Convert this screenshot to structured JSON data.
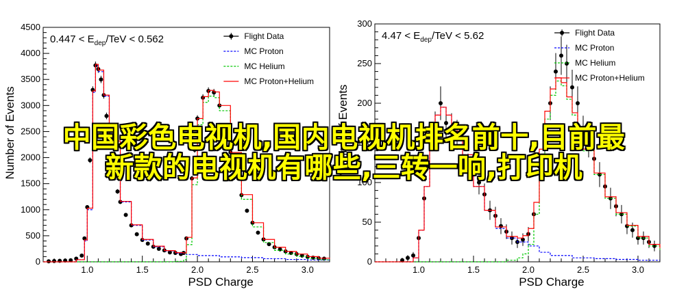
{
  "overlay": {
    "line1": "中国彩色电视机,国内电视机排名前十,目前最",
    "line2": "新款的电视机有哪些,三转一响,打印机"
  },
  "colors": {
    "flight": "#000000",
    "proton": "#0000ff",
    "helium": "#00c800",
    "sum": "#ff0000",
    "overlay_text": "#ffff00"
  },
  "chart_data": [
    {
      "type": "line",
      "title": "0.447 < E_dep/TeV < 0.562",
      "title_parts": {
        "prefix": "0.447 < E",
        "sub": "dep",
        "suffix": "/TeV < 0.562"
      },
      "xlabel": "PSD Charge",
      "ylabel": "Number of Events",
      "xlim": [
        0.6,
        3.2
      ],
      "ylim": [
        0,
        4500
      ],
      "xticks": [
        "1.0",
        "1.5",
        "2.0",
        "2.5",
        "3.0"
      ],
      "yticks": [
        "0",
        "500",
        "1000",
        "1500",
        "2000",
        "2500",
        "3000",
        "3500",
        "4000",
        "4500"
      ],
      "legend": [
        "Flight Data",
        "MC Proton",
        "MC Helium",
        "MC Proton+Helium"
      ],
      "legend_position": "top-right",
      "series": [
        {
          "name": "Flight Data",
          "points": [
            [
              0.65,
              10
            ],
            [
              0.7,
              15
            ],
            [
              0.75,
              20
            ],
            [
              0.8,
              25
            ],
            [
              0.85,
              30
            ],
            [
              0.9,
              60
            ],
            [
              0.95,
              120
            ],
            [
              0.975,
              450
            ],
            [
              1.0,
              1050
            ],
            [
              1.025,
              1950
            ],
            [
              1.05,
              3300
            ],
            [
              1.075,
              3770
            ],
            [
              1.1,
              3700
            ],
            [
              1.125,
              3500
            ],
            [
              1.15,
              3200
            ],
            [
              1.175,
              2800
            ],
            [
              1.2,
              2350
            ],
            [
              1.225,
              1950
            ],
            [
              1.25,
              1650
            ],
            [
              1.275,
              1350
            ],
            [
              1.3,
              1150
            ],
            [
              1.35,
              900
            ],
            [
              1.4,
              700
            ],
            [
              1.45,
              530
            ],
            [
              1.5,
              420
            ],
            [
              1.55,
              350
            ],
            [
              1.6,
              290
            ],
            [
              1.65,
              250
            ],
            [
              1.7,
              220
            ],
            [
              1.75,
              180
            ],
            [
              1.8,
              170
            ],
            [
              1.85,
              150
            ],
            [
              1.875,
              170
            ],
            [
              1.9,
              450
            ],
            [
              1.95,
              1600
            ],
            [
              1.975,
              2150
            ],
            [
              2.0,
              2750
            ],
            [
              2.05,
              3150
            ],
            [
              2.1,
              3280
            ],
            [
              2.15,
              3250
            ],
            [
              2.2,
              3000
            ],
            [
              2.25,
              2600
            ],
            [
              2.3,
              2100
            ],
            [
              2.35,
              1650
            ],
            [
              2.4,
              1280
            ],
            [
              2.45,
              980
            ],
            [
              2.5,
              750
            ],
            [
              2.55,
              560
            ],
            [
              2.6,
              430
            ],
            [
              2.65,
              340
            ],
            [
              2.7,
              280
            ],
            [
              2.75,
              240
            ],
            [
              2.8,
              200
            ],
            [
              2.85,
              170
            ],
            [
              2.9,
              150
            ],
            [
              2.95,
              120
            ],
            [
              3.0,
              95
            ],
            [
              3.05,
              80
            ],
            [
              3.1,
              70
            ],
            [
              3.15,
              60
            ]
          ]
        },
        {
          "name": "MC Proton",
          "points": [
            [
              0.6,
              0
            ],
            [
              0.9,
              40
            ],
            [
              0.975,
              400
            ],
            [
              1.0,
              1000
            ],
            [
              1.05,
              3250
            ],
            [
              1.075,
              3760
            ],
            [
              1.1,
              3650
            ],
            [
              1.15,
              3180
            ],
            [
              1.2,
              2300
            ],
            [
              1.3,
              1150
            ],
            [
              1.4,
              700
            ],
            [
              1.5,
              420
            ],
            [
              1.6,
              290
            ],
            [
              1.7,
              210
            ],
            [
              1.8,
              165
            ],
            [
              1.9,
              140
            ],
            [
              2.0,
              120
            ],
            [
              2.2,
              95
            ],
            [
              2.4,
              80
            ],
            [
              2.6,
              60
            ],
            [
              2.8,
              45
            ],
            [
              3.0,
              35
            ],
            [
              3.2,
              30
            ]
          ]
        },
        {
          "name": "MC Helium",
          "points": [
            [
              0.6,
              0
            ],
            [
              1.7,
              2
            ],
            [
              1.8,
              8
            ],
            [
              1.875,
              40
            ],
            [
              1.9,
              330
            ],
            [
              1.95,
              1480
            ],
            [
              2.0,
              2630
            ],
            [
              2.05,
              3060
            ],
            [
              2.1,
              3180
            ],
            [
              2.15,
              3150
            ],
            [
              2.2,
              2900
            ],
            [
              2.3,
              2000
            ],
            [
              2.4,
              1200
            ],
            [
              2.5,
              670
            ],
            [
              2.6,
              370
            ],
            [
              2.7,
              220
            ],
            [
              2.8,
              150
            ],
            [
              2.9,
              105
            ],
            [
              3.0,
              65
            ],
            [
              3.1,
              40
            ],
            [
              3.2,
              30
            ]
          ]
        },
        {
          "name": "MC Proton+Helium",
          "points": [
            [
              0.6,
              0
            ],
            [
              0.9,
              40
            ],
            [
              0.975,
              420
            ],
            [
              1.0,
              1030
            ],
            [
              1.05,
              3280
            ],
            [
              1.075,
              3790
            ],
            [
              1.1,
              3680
            ],
            [
              1.15,
              3200
            ],
            [
              1.2,
              2320
            ],
            [
              1.3,
              1160
            ],
            [
              1.4,
              710
            ],
            [
              1.5,
              430
            ],
            [
              1.6,
              300
            ],
            [
              1.7,
              215
            ],
            [
              1.8,
              175
            ],
            [
              1.875,
              170
            ],
            [
              1.9,
              470
            ],
            [
              1.95,
              1610
            ],
            [
              2.0,
              2750
            ],
            [
              2.05,
              3170
            ],
            [
              2.1,
              3290
            ],
            [
              2.15,
              3260
            ],
            [
              2.2,
              3000
            ],
            [
              2.3,
              2100
            ],
            [
              2.4,
              1290
            ],
            [
              2.5,
              750
            ],
            [
              2.6,
              430
            ],
            [
              2.7,
              280
            ],
            [
              2.8,
              200
            ],
            [
              2.9,
              150
            ],
            [
              3.0,
              100
            ],
            [
              3.1,
              70
            ],
            [
              3.2,
              60
            ]
          ]
        }
      ]
    },
    {
      "type": "line",
      "title": "4.47 < E_dep/TeV < 5.62",
      "title_parts": {
        "prefix": "4.47 < E",
        "sub": "dep",
        "suffix": "/TeV < 5.62"
      },
      "xlabel": "PSD Charge",
      "ylabel": "Number of Events",
      "xlim": [
        0.6,
        3.2
      ],
      "ylim": [
        0,
        300
      ],
      "xticks": [
        "1.0",
        "1.5",
        "2.0",
        "2.5",
        "3.0"
      ],
      "yticks": [
        "0",
        "50",
        "100",
        "150",
        "200",
        "250",
        "300"
      ],
      "legend": [
        "Flight Data",
        "MC Proton",
        "MC Helium",
        "MC Proton+Helium"
      ],
      "legend_position": "top-right",
      "series": [
        {
          "name": "Flight Data",
          "points": [
            [
              0.85,
              2
            ],
            [
              0.9,
              5
            ],
            [
              0.95,
              8
            ],
            [
              1.0,
              30
            ],
            [
              1.05,
              80
            ],
            [
              1.1,
              120
            ],
            [
              1.15,
              170
            ],
            [
              1.2,
              200
            ],
            [
              1.25,
              175
            ],
            [
              1.3,
              168
            ],
            [
              1.35,
              160
            ],
            [
              1.4,
              145
            ],
            [
              1.45,
              120
            ],
            [
              1.5,
              110
            ],
            [
              1.55,
              100
            ],
            [
              1.6,
              85
            ],
            [
              1.65,
              65
            ],
            [
              1.7,
              58
            ],
            [
              1.75,
              45
            ],
            [
              1.8,
              38
            ],
            [
              1.85,
              30
            ],
            [
              1.9,
              25
            ],
            [
              1.95,
              28
            ],
            [
              2.0,
              35
            ],
            [
              2.05,
              60
            ],
            [
              2.1,
              120
            ],
            [
              2.15,
              150
            ],
            [
              2.2,
              200
            ],
            [
              2.25,
              240
            ],
            [
              2.3,
              260
            ],
            [
              2.35,
              250
            ],
            [
              2.4,
              220
            ],
            [
              2.45,
              200
            ],
            [
              2.5,
              165
            ],
            [
              2.55,
              150
            ],
            [
              2.6,
              130
            ],
            [
              2.65,
              110
            ],
            [
              2.7,
              95
            ],
            [
              2.75,
              80
            ],
            [
              2.8,
              70
            ],
            [
              2.85,
              60
            ],
            [
              2.9,
              45
            ],
            [
              2.95,
              40
            ],
            [
              3.0,
              30
            ],
            [
              3.05,
              30
            ],
            [
              3.1,
              25
            ],
            [
              3.15,
              20
            ]
          ]
        },
        {
          "name": "MC Proton",
          "points": [
            [
              0.6,
              0
            ],
            [
              0.95,
              5
            ],
            [
              1.0,
              40
            ],
            [
              1.05,
              95
            ],
            [
              1.1,
              150
            ],
            [
              1.15,
              185
            ],
            [
              1.2,
              195
            ],
            [
              1.25,
              185
            ],
            [
              1.3,
              165
            ],
            [
              1.4,
              135
            ],
            [
              1.5,
              95
            ],
            [
              1.6,
              65
            ],
            [
              1.7,
              42
            ],
            [
              1.8,
              30
            ],
            [
              1.9,
              25
            ],
            [
              2.0,
              20
            ],
            [
              2.1,
              12
            ],
            [
              2.2,
              8
            ],
            [
              2.4,
              5
            ],
            [
              2.6,
              4
            ],
            [
              2.8,
              3
            ],
            [
              3.0,
              2
            ],
            [
              3.2,
              2
            ]
          ]
        },
        {
          "name": "MC Helium",
          "points": [
            [
              0.6,
              0
            ],
            [
              1.8,
              2
            ],
            [
              1.9,
              5
            ],
            [
              1.95,
              10
            ],
            [
              2.0,
              22
            ],
            [
              2.05,
              60
            ],
            [
              2.1,
              130
            ],
            [
              2.15,
              180
            ],
            [
              2.2,
              210
            ],
            [
              2.25,
              228
            ],
            [
              2.3,
              222
            ],
            [
              2.35,
              205
            ],
            [
              2.4,
              185
            ],
            [
              2.45,
              165
            ],
            [
              2.5,
              140
            ],
            [
              2.6,
              110
            ],
            [
              2.7,
              80
            ],
            [
              2.8,
              60
            ],
            [
              2.9,
              45
            ],
            [
              3.0,
              30
            ],
            [
              3.1,
              20
            ],
            [
              3.2,
              15
            ]
          ]
        },
        {
          "name": "MC Proton+Helium",
          "points": [
            [
              0.6,
              0
            ],
            [
              0.95,
              5
            ],
            [
              1.0,
              40
            ],
            [
              1.05,
              95
            ],
            [
              1.1,
              150
            ],
            [
              1.15,
              185
            ],
            [
              1.2,
              195
            ],
            [
              1.25,
              185
            ],
            [
              1.3,
              165
            ],
            [
              1.4,
              135
            ],
            [
              1.5,
              95
            ],
            [
              1.6,
              65
            ],
            [
              1.7,
              44
            ],
            [
              1.8,
              32
            ],
            [
              1.9,
              30
            ],
            [
              1.95,
              33
            ],
            [
              2.0,
              42
            ],
            [
              2.05,
              75
            ],
            [
              2.1,
              142
            ],
            [
              2.15,
              190
            ],
            [
              2.2,
              218
            ],
            [
              2.25,
              232
            ],
            [
              2.3,
              226
            ],
            [
              2.35,
              208
            ],
            [
              2.4,
              188
            ],
            [
              2.45,
              168
            ],
            [
              2.5,
              142
            ],
            [
              2.6,
              112
            ],
            [
              2.7,
              82
            ],
            [
              2.8,
              62
            ],
            [
              2.9,
              46
            ],
            [
              3.0,
              32
            ],
            [
              3.1,
              22
            ],
            [
              3.2,
              17
            ]
          ]
        }
      ]
    }
  ]
}
